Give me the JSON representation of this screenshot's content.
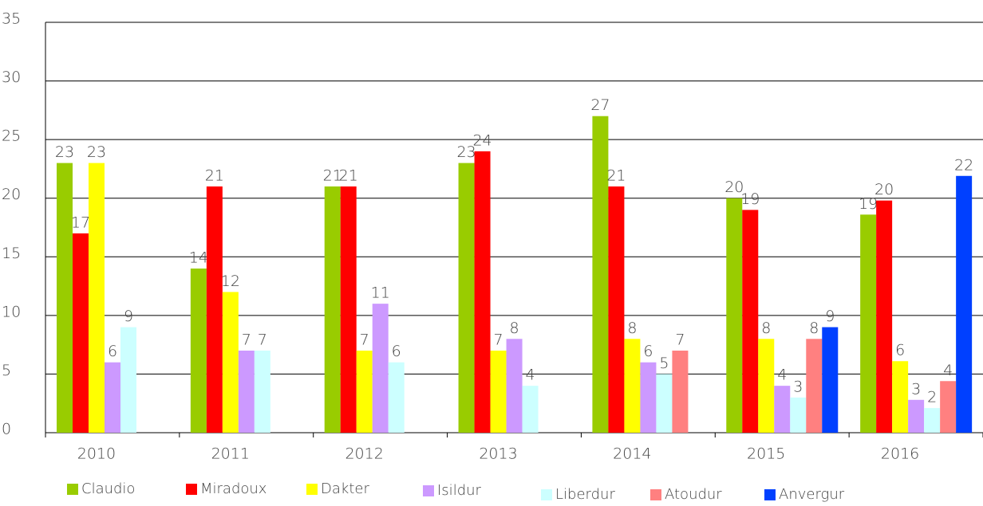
{
  "chart_data": {
    "type": "bar",
    "categories": [
      "2010",
      "2011",
      "2012",
      "2013",
      "2014",
      "2015",
      "2016"
    ],
    "series": [
      {
        "name": "Claudio",
        "color": "#99cc00",
        "values": [
          23,
          14,
          21,
          23,
          27,
          20,
          18.6
        ],
        "value_labels": [
          "23",
          "14",
          "21",
          "23",
          "27",
          "20",
          "19"
        ]
      },
      {
        "name": "Miradoux",
        "color": "#ff0000",
        "values": [
          17,
          21,
          21,
          24,
          21,
          19,
          19.8
        ],
        "value_labels": [
          "17",
          "21",
          "21",
          "24",
          "21",
          "19",
          "20"
        ]
      },
      {
        "name": "Dakter",
        "color": "#ffff00",
        "values": [
          23,
          12,
          7,
          7,
          8,
          8,
          6.1
        ],
        "value_labels": [
          "23",
          "12",
          "7",
          "7",
          "8",
          "8",
          "6"
        ]
      },
      {
        "name": "Isildur",
        "color": "#cc99ff",
        "values": [
          6,
          7,
          11,
          8,
          6,
          4,
          2.8
        ],
        "value_labels": [
          "6",
          "7",
          "11",
          "8",
          "6",
          "4",
          "3"
        ]
      },
      {
        "name": "Liberdur",
        "color": "#ccffff",
        "values": [
          9,
          7,
          6,
          4,
          5,
          3,
          2.1
        ],
        "value_labels": [
          "9",
          "7",
          "6",
          "4",
          "5",
          "3",
          "2"
        ]
      },
      {
        "name": "Atoudur",
        "color": "#ff8080",
        "values": [
          null,
          null,
          null,
          null,
          7,
          8,
          4.4
        ],
        "value_labels": [
          null,
          null,
          null,
          null,
          "7",
          "8",
          "4"
        ]
      },
      {
        "name": "Anvergur",
        "color": "#0040ff",
        "values": [
          null,
          null,
          null,
          null,
          null,
          9,
          21.9
        ],
        "value_labels": [
          null,
          null,
          null,
          null,
          null,
          "9",
          "22"
        ]
      }
    ],
    "ylim": [
      0,
      35
    ],
    "yticks": [
      0,
      5,
      10,
      15,
      20,
      25,
      30,
      35
    ],
    "grid": true
  }
}
